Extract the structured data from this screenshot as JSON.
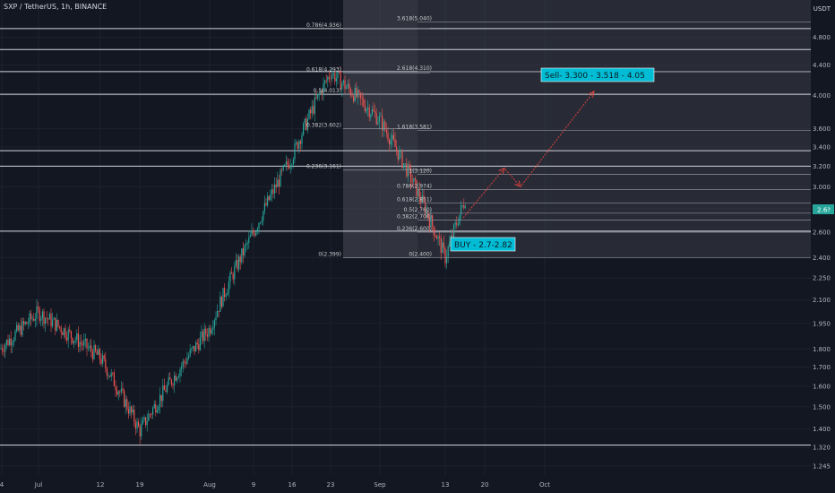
{
  "header": {
    "title": "SXP / TetherUS, 1h, BINANCE"
  },
  "price_axis": {
    "currency": "USDT",
    "current_price": "2.6?"
  },
  "colors": {
    "background": "#131722",
    "grid": "#1e222d",
    "up": "#26a69a",
    "down": "#ef5350",
    "hline": "#d1d4dc",
    "fib_box": "#4a4d57",
    "fib_box_alt": "#3a3d47",
    "arrow": "#e0413c",
    "annotation_bg": "#00bcd4",
    "annotation_text": "#0b1a20"
  },
  "annotations": {
    "sell": "Sell-  3.300 - 3.518  - 4.05",
    "buy": "BUY - 2.7-2.82"
  },
  "chart_data": {
    "type": "candlestick",
    "title": "SXP / TetherUS, 1h, BINANCE",
    "x_tick_labels": [
      "4",
      "Jul",
      "12",
      "19",
      "Aug",
      "9",
      "16",
      "23",
      "Sep",
      "13",
      "20",
      "Oct"
    ],
    "y_tick_labels": [
      "4.800",
      "4.400",
      "4.000",
      "3.600",
      "3.400",
      "3.200",
      "3.000",
      "2.800",
      "2.600",
      "2.400",
      "2.250",
      "2.100",
      "1.950",
      "1.800",
      "1.700",
      "1.600",
      "1.500",
      "1.400",
      "1.320",
      "1.245"
    ],
    "y_scale": "log",
    "ylim": [
      1.21,
      5.4
    ],
    "price_path": [
      [
        "4",
        1.8
      ],
      [
        "Jul",
        2.02
      ],
      [
        "12",
        1.75
      ],
      [
        "19",
        1.39
      ],
      [
        "Aug",
        1.92
      ],
      [
        "9",
        2.6
      ],
      [
        "16",
        3.3
      ],
      [
        "23",
        4.3
      ],
      [
        "Sep",
        3.7
      ],
      [
        "13",
        2.4
      ],
      [
        "13",
        2.9
      ]
    ],
    "horizontal_levels": [
      4.936,
      4.62,
      4.31,
      4.013,
      3.36,
      3.2,
      2.608,
      1.33
    ],
    "fib_retracement_1": {
      "levels": [
        {
          "ratio": "0.786",
          "price": 4.936
        },
        {
          "ratio": "0.618",
          "price": 4.293
        },
        {
          "ratio": "0.5",
          "price": 4.013
        },
        {
          "ratio": "0.382",
          "price": 3.602
        },
        {
          "ratio": "0.236",
          "price": 3.161
        },
        {
          "ratio": "0",
          "price": 2.399
        }
      ]
    },
    "fib_retracement_2": {
      "levels": [
        {
          "ratio": "3.618",
          "price": 5.04
        },
        {
          "ratio": "2.618",
          "price": 4.31
        },
        {
          "ratio": "1.618",
          "price": 3.581
        },
        {
          "ratio": "1",
          "price": 3.12
        },
        {
          "ratio": "0.786",
          "price": 2.974
        },
        {
          "ratio": "0.618",
          "price": 2.851
        },
        {
          "ratio": "0.5",
          "price": 2.76
        },
        {
          "ratio": "0.382",
          "price": 2.7
        },
        {
          "ratio": "0.236",
          "price": 2.6
        },
        {
          "ratio": "0",
          "price": 2.4
        }
      ]
    },
    "projection_path": [
      {
        "x": "13",
        "price": 2.72
      },
      {
        "x": "20",
        "price": 3.18
      },
      {
        "x": "20",
        "price": 3.0
      },
      {
        "x": "Oct",
        "price": 4.05
      }
    ],
    "grid": true
  }
}
